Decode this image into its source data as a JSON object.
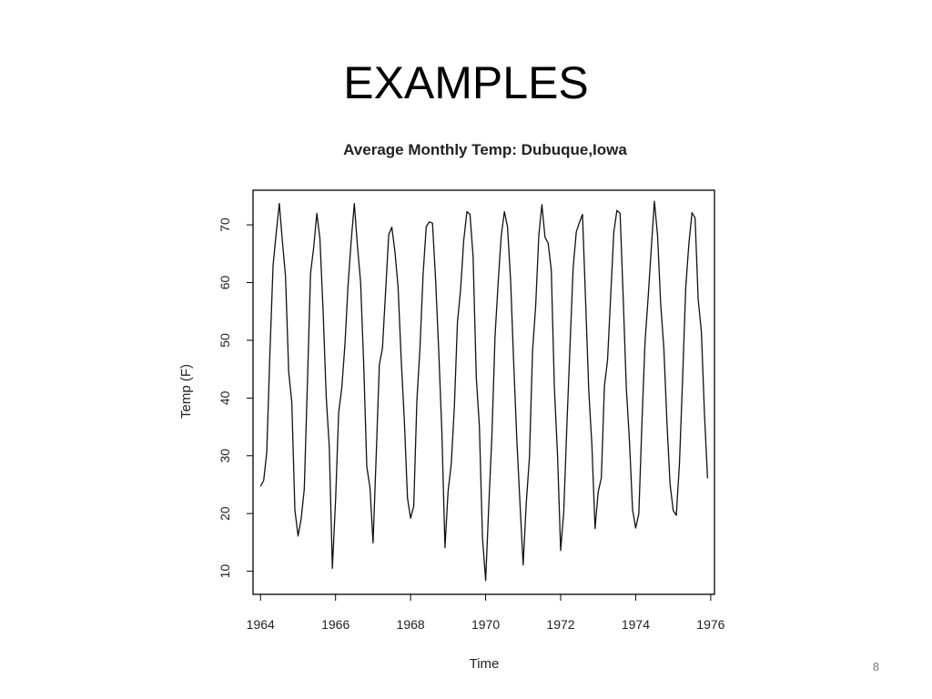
{
  "slide": {
    "title": "EXAMPLES",
    "page_number": "8"
  },
  "chart_data": {
    "type": "line",
    "title": "Average Monthly Temp: Dubuque,Iowa",
    "xlabel": "Time",
    "ylabel": "Temp (F)",
    "xlim": [
      1963.8,
      1976.1
    ],
    "ylim": [
      6,
      76
    ],
    "x_ticks": [
      1964,
      1966,
      1968,
      1970,
      1972,
      1974,
      1976
    ],
    "y_ticks": [
      10,
      20,
      30,
      40,
      50,
      60,
      70
    ],
    "grid": false,
    "legend": "none",
    "series": [
      {
        "x_start": 1964,
        "x_step_years": 0.0833333,
        "values": [
          24.7,
          25.7,
          30.6,
          47.5,
          62.9,
          68.5,
          73.7,
          67.1,
          61.1,
          44.5,
          39.3,
          20.6,
          16.1,
          19.1,
          24.2,
          42.8,
          61.6,
          66.0,
          72.0,
          67.6,
          55.5,
          40.3,
          31.5,
          10.5,
          22.3,
          37.5,
          41.9,
          49.3,
          59.5,
          67.3,
          73.7,
          66.4,
          60.1,
          45.9,
          28.1,
          24.5,
          14.9,
          29.9,
          45.8,
          48.6,
          58.3,
          68.3,
          69.6,
          65.4,
          59.2,
          46.7,
          36.0,
          22.7,
          19.2,
          21.3,
          39.4,
          48.6,
          61.5,
          69.7,
          70.5,
          70.3,
          60.5,
          48.3,
          34.1,
          14.1,
          23.8,
          28.6,
          38.4,
          53.1,
          58.9,
          67.3,
          72.3,
          71.8,
          64.5,
          43.5,
          35.2,
          15.8,
          8.4,
          21.3,
          33.2,
          50.7,
          59.9,
          68.1,
          72.3,
          69.7,
          60.4,
          45.7,
          32.6,
          21.8,
          11.1,
          21.8,
          29.7,
          48.1,
          55.8,
          68.2,
          73.5,
          67.9,
          66.8,
          62.2,
          41.8,
          30.0,
          13.6,
          20.3,
          35.5,
          49.1,
          62.5,
          68.8,
          70.4,
          71.8,
          56.4,
          41.2,
          31.9,
          17.4,
          23.7,
          26.2,
          42.1,
          46.5,
          57.8,
          68.7,
          72.5,
          72.0,
          57.5,
          41.9,
          32.5,
          20.7,
          17.5,
          20.0,
          35.7,
          49.7,
          57.6,
          66.0,
          74.1,
          68.1,
          56.3,
          48.6,
          35.7,
          25.1,
          20.5,
          19.7,
          28.6,
          43.4,
          59.0,
          66.6,
          72.1,
          71.2,
          57.1,
          51.5,
          37.3,
          26.1
        ]
      }
    ]
  }
}
